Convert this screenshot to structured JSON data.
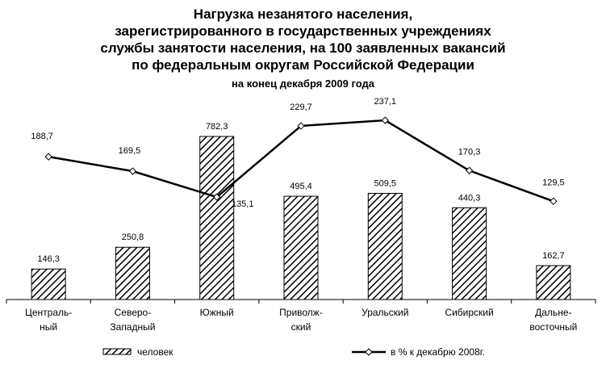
{
  "titles": {
    "line1": "Нагрузка незанятого населения,",
    "line2": "зарегистрированного в государственных учреждениях",
    "line3": "службы занятости населения, на 100 заявленных вакансий",
    "line4": "по федеральным округам Российской Федерации",
    "subtitle": "на конец декабря 2009 года"
  },
  "chart_data": {
    "type": "bar",
    "title": "Нагрузка незанятого населения, зарегистрированного в государственных учреждениях службы занятости населения, на 100 заявленных вакансий по федеральным округам Российской Федерации",
    "subtitle": "на конец декабря 2009 года",
    "categories": [
      [
        "Централь-",
        "ный"
      ],
      [
        "Северо-",
        "Западный"
      ],
      [
        "Южный"
      ],
      [
        "Приволж-",
        "ский"
      ],
      [
        "Уральский"
      ],
      [
        "Сибирский"
      ],
      [
        "Дальне-",
        "восточный"
      ]
    ],
    "bar_value_labels": [
      "146,3",
      "250,8",
      "782,3",
      "495,4",
      "509,5",
      "440,3",
      "162,7"
    ],
    "line_value_labels": [
      "188,7",
      "169,5",
      "135,1",
      "229,7",
      "237,1",
      "170,3",
      "129,5"
    ],
    "series": [
      {
        "name": "человек",
        "type": "bar",
        "values": [
          146.3,
          250.8,
          782.3,
          495.4,
          509.5,
          440.3,
          162.7
        ],
        "axis": "left",
        "fill": "diagonal-hatch",
        "color": "#000000"
      },
      {
        "name": "в % к декабрю 2008г.",
        "type": "line",
        "values": [
          188.7,
          169.5,
          135.1,
          229.7,
          237.1,
          170.3,
          129.5
        ],
        "axis": "right",
        "marker": "diamond-open",
        "color": "#000000"
      }
    ],
    "ylim_bars": [
      0,
      1000
    ],
    "ylim_line": [
      0,
      260
    ],
    "grid": false,
    "legend_position": "bottom"
  }
}
